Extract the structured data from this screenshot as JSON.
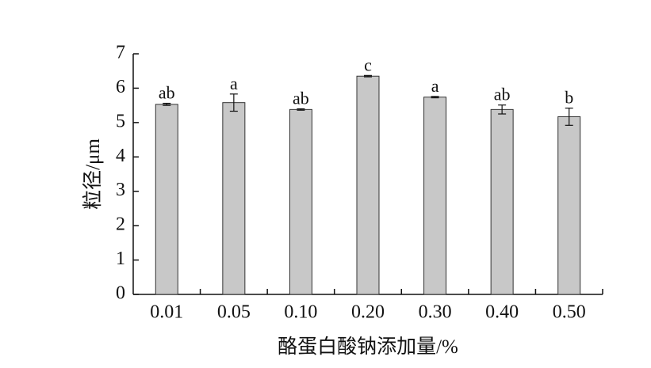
{
  "chart_data": {
    "type": "bar",
    "x_label": "酪蛋白酸钠添加量/%",
    "y_label": "粒径/μm",
    "categories": [
      "0.01",
      "0.05",
      "0.10",
      "0.20",
      "0.30",
      "0.40",
      "0.50"
    ],
    "values": [
      5.53,
      5.58,
      5.38,
      6.35,
      5.74,
      5.38,
      5.17
    ],
    "errors": [
      0.03,
      0.25,
      0.02,
      0.02,
      0.02,
      0.13,
      0.25
    ],
    "annotations": [
      "ab",
      "a",
      "ab",
      "c",
      "a",
      "ab",
      "b"
    ],
    "color": "#c8c8c8",
    "ylim": [
      0,
      7
    ],
    "yticks": [
      0,
      1,
      2,
      3,
      4,
      5,
      6,
      7
    ],
    "grid": false
  }
}
